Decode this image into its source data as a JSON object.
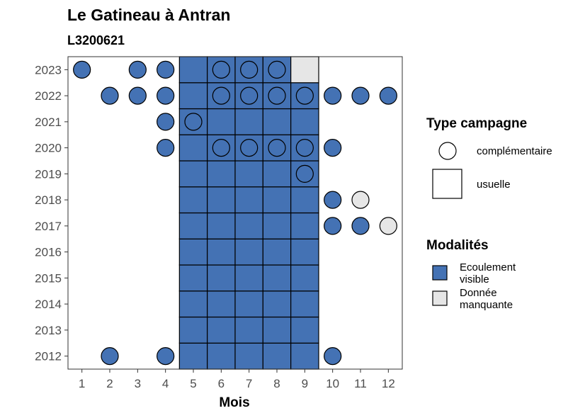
{
  "chart_data": {
    "type": "scatter",
    "title": "Le Gatineau à Antran",
    "subtitle": "L3200621",
    "xlabel": "Mois",
    "ylabel": "",
    "x_ticks": [
      "1",
      "2",
      "3",
      "4",
      "5",
      "6",
      "7",
      "8",
      "9",
      "10",
      "11",
      "12"
    ],
    "y_ticks": [
      "2012",
      "2013",
      "2014",
      "2015",
      "2016",
      "2017",
      "2018",
      "2019",
      "2020",
      "2021",
      "2022",
      "2023"
    ],
    "xlim": [
      0.5,
      12.5
    ],
    "ylim": [
      2011.5,
      2023.5
    ],
    "grid": false,
    "legend_placement": "right",
    "colors": {
      "Ecoulement visible": "#4472b4",
      "Donnée manquante": "#e6e6e6"
    },
    "legends": [
      {
        "title": "Type campagne",
        "items": [
          {
            "label": "complémentaire",
            "shape": "circle"
          },
          {
            "label": "usuelle",
            "shape": "square"
          }
        ]
      },
      {
        "title": "Modalités",
        "items": [
          {
            "label_lines": [
              "Ecoulement",
              "visible"
            ],
            "key": "Ecoulement visible"
          },
          {
            "label_lines": [
              "Donnée",
              "manquante"
            ],
            "key": "Donnée manquante"
          }
        ]
      }
    ],
    "usuelle": [
      {
        "year": 2012,
        "months": [
          5,
          6,
          7,
          8,
          9
        ],
        "modalite": "Ecoulement visible"
      },
      {
        "year": 2013,
        "months": [
          5,
          6,
          7,
          8,
          9
        ],
        "modalite": "Ecoulement visible"
      },
      {
        "year": 2014,
        "months": [
          5,
          6,
          7,
          8,
          9
        ],
        "modalite": "Ecoulement visible"
      },
      {
        "year": 2015,
        "months": [
          5,
          6,
          7,
          8,
          9
        ],
        "modalite": "Ecoulement visible"
      },
      {
        "year": 2016,
        "months": [
          5,
          6,
          7,
          8,
          9
        ],
        "modalite": "Ecoulement visible"
      },
      {
        "year": 2017,
        "months": [
          5,
          6,
          7,
          8,
          9
        ],
        "modalite": "Ecoulement visible"
      },
      {
        "year": 2018,
        "months": [
          5,
          6,
          7,
          8,
          9
        ],
        "modalite": "Ecoulement visible"
      },
      {
        "year": 2019,
        "months": [
          5,
          6,
          7,
          8,
          9
        ],
        "modalite": "Ecoulement visible"
      },
      {
        "year": 2020,
        "months": [
          5,
          6,
          7,
          8,
          9
        ],
        "modalite": "Ecoulement visible"
      },
      {
        "year": 2021,
        "months": [
          5,
          6,
          7,
          8,
          9
        ],
        "modalite": "Ecoulement visible"
      },
      {
        "year": 2022,
        "months": [
          5,
          6,
          7,
          8,
          9
        ],
        "modalite": "Ecoulement visible"
      },
      {
        "year": 2023,
        "months": [
          5,
          6,
          7,
          8
        ],
        "modalite": "Ecoulement visible"
      },
      {
        "year": 2023,
        "months": [
          9
        ],
        "modalite": "Donnée manquante"
      }
    ],
    "complementaire": [
      {
        "year": 2012,
        "months": [
          2,
          4,
          10
        ],
        "modalite": "Ecoulement visible"
      },
      {
        "year": 2017,
        "months": [
          10,
          11
        ],
        "modalite": "Ecoulement visible"
      },
      {
        "year": 2017,
        "months": [
          12
        ],
        "modalite": "Donnée manquante"
      },
      {
        "year": 2018,
        "months": [
          10
        ],
        "modalite": "Ecoulement visible"
      },
      {
        "year": 2018,
        "months": [
          11
        ],
        "modalite": "Donnée manquante"
      },
      {
        "year": 2019,
        "months": [
          9
        ],
        "modalite": "Ecoulement visible"
      },
      {
        "year": 2020,
        "months": [
          4,
          6,
          7,
          8,
          9,
          10
        ],
        "modalite": "Ecoulement visible"
      },
      {
        "year": 2021,
        "months": [
          4,
          5
        ],
        "modalite": "Ecoulement visible"
      },
      {
        "year": 2022,
        "months": [
          2,
          3,
          4,
          6,
          7,
          8,
          9,
          10,
          11,
          12
        ],
        "modalite": "Ecoulement visible"
      },
      {
        "year": 2023,
        "months": [
          1,
          3,
          4,
          6,
          7,
          8
        ],
        "modalite": "Ecoulement visible"
      }
    ]
  }
}
